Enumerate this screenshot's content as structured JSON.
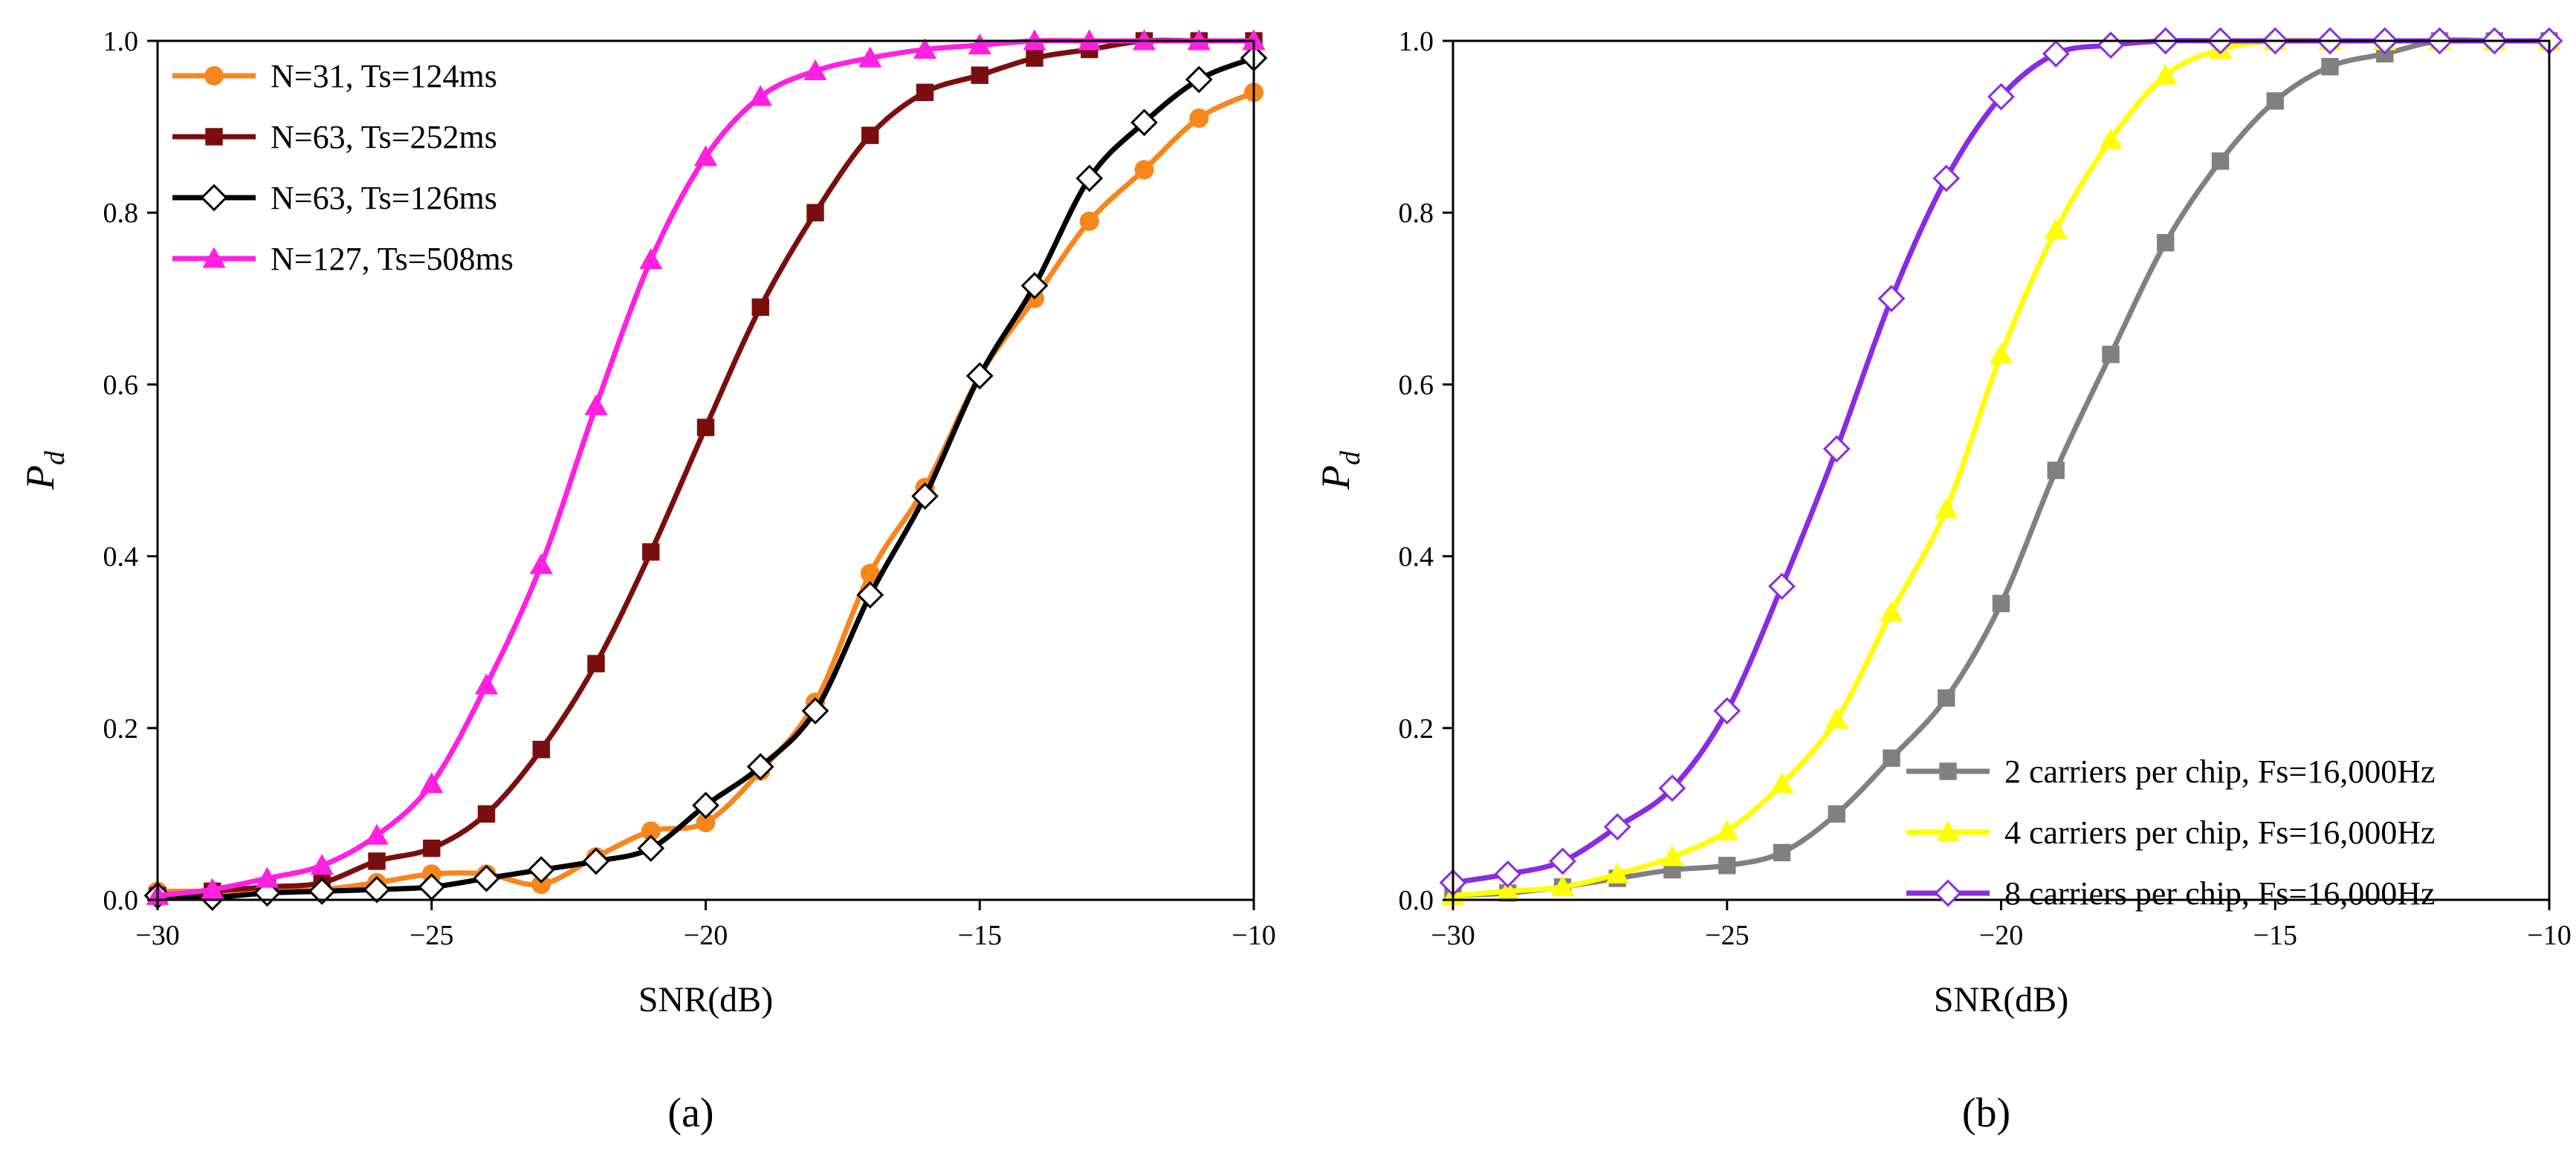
{
  "chart_data": [
    {
      "type": "line",
      "panel_label": "(a)",
      "xlabel": "SNR(dB)",
      "ylabel": "P",
      "ylabel_sub": "d",
      "xlim": [
        -30,
        -10
      ],
      "ylim": [
        0,
        1
      ],
      "xticks": [
        -30,
        -25,
        -20,
        -15,
        -10
      ],
      "xtick_labels": [
        "−30",
        "−25",
        "−20",
        "−15",
        "−10"
      ],
      "yticks": [
        0,
        0.2,
        0.4,
        0.6,
        0.8,
        1.0
      ],
      "ytick_labels": [
        "0.0",
        "0.2",
        "0.4",
        "0.6",
        "0.8",
        "1.0"
      ],
      "legend_position": "top-left",
      "x": [
        -30,
        -29,
        -28,
        -27,
        -26,
        -25,
        -24,
        -23,
        -22,
        -21,
        -20,
        -19,
        -18,
        -17,
        -16,
        -15,
        -14,
        -13,
        -12,
        -11,
        -10
      ],
      "series": [
        {
          "name": "N=31, Ts=124ms",
          "color": "#F7861C",
          "marker": "circle",
          "values": [
            0.01,
            0.01,
            0.01,
            0.012,
            0.02,
            0.03,
            0.03,
            0.018,
            0.05,
            0.08,
            0.09,
            0.15,
            0.23,
            0.38,
            0.48,
            0.61,
            0.7,
            0.79,
            0.85,
            0.91,
            0.94
          ]
        },
        {
          "name": "N=63, Ts=252ms",
          "color": "#7A0E0E",
          "marker": "square",
          "values": [
            0.005,
            0.01,
            0.015,
            0.02,
            0.045,
            0.06,
            0.1,
            0.175,
            0.275,
            0.405,
            0.55,
            0.69,
            0.8,
            0.89,
            0.94,
            0.96,
            0.98,
            0.99,
            1.0,
            1.0,
            1.0
          ]
        },
        {
          "name": "N=63, Ts=126ms",
          "color": "#000000",
          "marker": "diamond-open",
          "values": [
            0.005,
            0.003,
            0.008,
            0.01,
            0.012,
            0.015,
            0.025,
            0.035,
            0.045,
            0.06,
            0.11,
            0.155,
            0.22,
            0.355,
            0.47,
            0.61,
            0.715,
            0.84,
            0.905,
            0.955,
            0.98
          ]
        },
        {
          "name": "N=127, Ts=508ms",
          "color": "#FF20E0",
          "marker": "triangle",
          "values": [
            0.005,
            0.012,
            0.025,
            0.04,
            0.075,
            0.135,
            0.25,
            0.39,
            0.575,
            0.745,
            0.865,
            0.935,
            0.965,
            0.98,
            0.99,
            0.995,
            1.0,
            1.0,
            1.0,
            1.0,
            1.0
          ]
        }
      ]
    },
    {
      "type": "line",
      "panel_label": "(b)",
      "xlabel": "SNR(dB)",
      "ylabel": "P",
      "ylabel_sub": "d",
      "xlim": [
        -30,
        -10
      ],
      "ylim": [
        0,
        1
      ],
      "xticks": [
        -30,
        -25,
        -20,
        -15,
        -10
      ],
      "xtick_labels": [
        "−30",
        "−25",
        "−20",
        "−15",
        "−10"
      ],
      "yticks": [
        0,
        0.2,
        0.4,
        0.6,
        0.8,
        1.0
      ],
      "ytick_labels": [
        "0.0",
        "0.2",
        "0.4",
        "0.6",
        "0.8",
        "1.0"
      ],
      "legend_position": "bottom-right",
      "x": [
        -30,
        -29,
        -28,
        -27,
        -26,
        -25,
        -24,
        -23,
        -22,
        -21,
        -20,
        -19,
        -18,
        -17,
        -16,
        -15,
        -14,
        -13,
        -12,
        -11,
        -10
      ],
      "series": [
        {
          "name": "2 carriers per chip, Fs=16,000Hz",
          "color": "#808080",
          "marker": "square",
          "values": [
            0.005,
            0.008,
            0.015,
            0.025,
            0.035,
            0.04,
            0.055,
            0.1,
            0.165,
            0.235,
            0.345,
            0.5,
            0.635,
            0.765,
            0.86,
            0.93,
            0.97,
            0.985,
            1.0,
            1.0,
            1.0
          ]
        },
        {
          "name": "4 carriers per chip, Fs=16,000Hz",
          "color": "#FFFF00",
          "marker": "triangle",
          "values": [
            0.005,
            0.01,
            0.015,
            0.03,
            0.05,
            0.08,
            0.135,
            0.21,
            0.335,
            0.455,
            0.635,
            0.78,
            0.885,
            0.96,
            0.99,
            1.0,
            1.0,
            1.0,
            1.0,
            1.0,
            1.0
          ]
        },
        {
          "name": "8 carriers per chip, Fs=16,000Hz",
          "color": "#8A2BE2",
          "marker": "diamond-open",
          "values": [
            0.02,
            0.03,
            0.045,
            0.085,
            0.13,
            0.22,
            0.365,
            0.525,
            0.7,
            0.84,
            0.935,
            0.985,
            0.995,
            1.0,
            1.0,
            1.0,
            1.0,
            1.0,
            1.0,
            1.0,
            1.0
          ]
        }
      ]
    }
  ]
}
